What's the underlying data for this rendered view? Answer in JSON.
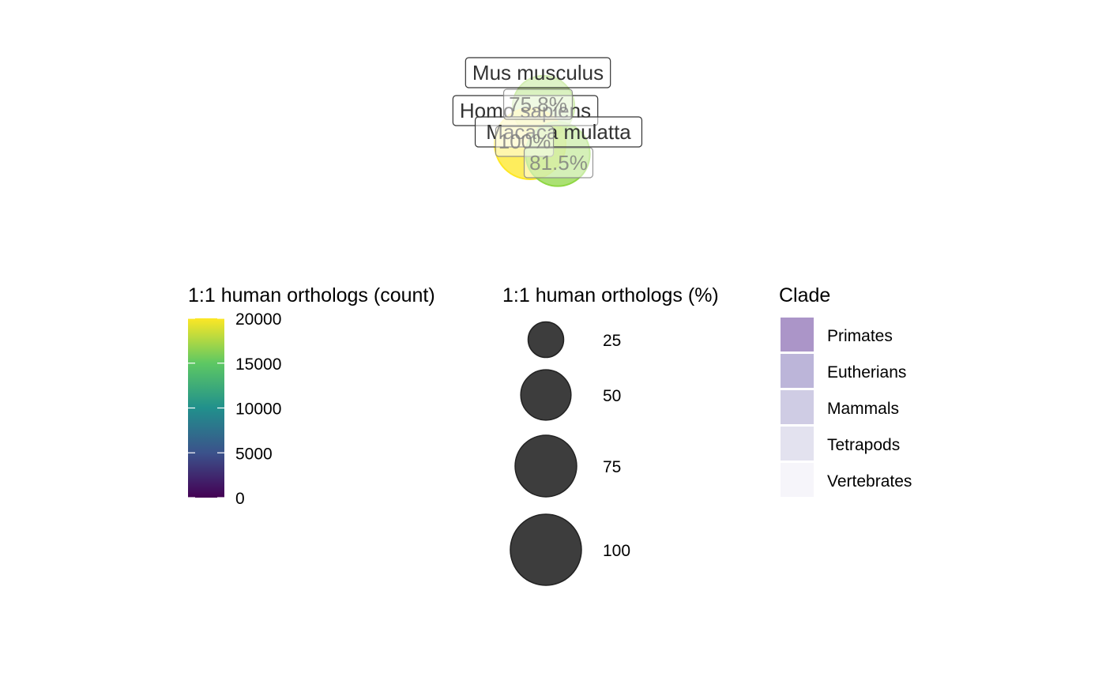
{
  "chart_data": {
    "type": "scatter",
    "title": "",
    "xlabel": "",
    "ylabel": "",
    "points": [
      {
        "species": "Mus musculus",
        "pct_label": "75.8%",
        "pct": 75.8,
        "count": 15160,
        "color": "#9ed85a"
      },
      {
        "species": "Homo sapiens",
        "pct_label": "100%",
        "pct": 100,
        "count": 20000,
        "color": "#fde725"
      },
      {
        "species": "Macaca mulatta",
        "pct_label": "81.5%",
        "pct": 81.5,
        "count": 16300,
        "color": "#8fd744"
      }
    ],
    "legends": {
      "count": {
        "title": "1:1 human orthologs (count)",
        "range": [
          0,
          20000
        ],
        "ticks": [
          "0",
          "5000",
          "10000",
          "15000",
          "20000"
        ],
        "colors": [
          "#440154",
          "#3b528b",
          "#21908c",
          "#5dc863",
          "#fde725"
        ]
      },
      "size": {
        "title": "1:1 human orthologs (%)",
        "entries": [
          {
            "label": "25",
            "value": 25
          },
          {
            "label": "50",
            "value": 50
          },
          {
            "label": "75",
            "value": 75
          },
          {
            "label": "100",
            "value": 100
          }
        ]
      },
      "clade": {
        "title": "Clade",
        "entries": [
          {
            "label": "Primates",
            "color": "#ab95c8"
          },
          {
            "label": "Eutherians",
            "color": "#bcb5d9"
          },
          {
            "label": "Mammals",
            "color": "#cfcce4"
          },
          {
            "label": "Tetrapods",
            "color": "#e3e2ef"
          },
          {
            "label": "Vertebrates",
            "color": "#f6f5fa"
          }
        ]
      }
    }
  }
}
